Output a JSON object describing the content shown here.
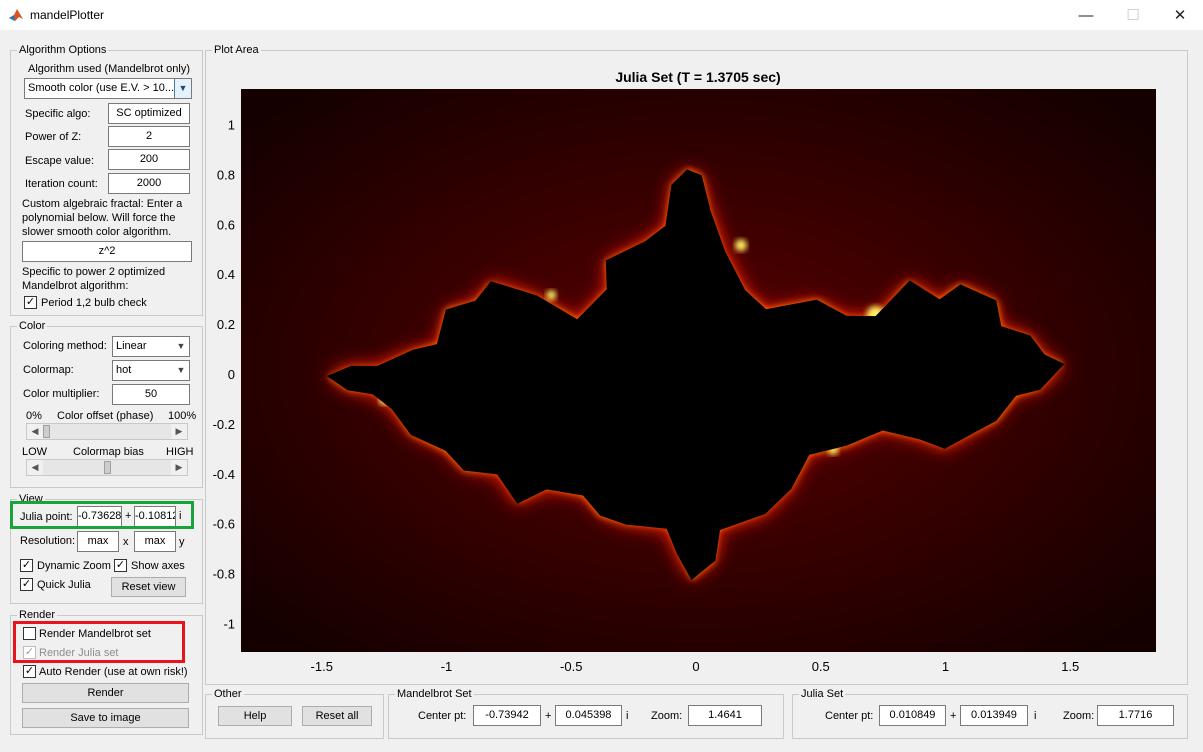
{
  "window": {
    "title": "mandelPlotter",
    "minimize": "—",
    "maximize": "☐",
    "close": "✕"
  },
  "algorithm": {
    "panel_title": "Algorithm Options",
    "algorithm_used_label": "Algorithm used (Mandelbrot only)",
    "algorithm_value": "Smooth color (use E.V. > 10...",
    "specific_algo_label": "Specific algo:",
    "specific_algo_value": "SC optimized",
    "power_label": "Power of Z:",
    "power_value": "2",
    "escape_label": "Escape value:",
    "escape_value": "200",
    "iteration_label": "Iteration count:",
    "iteration_value": "2000",
    "custom_text_1": "Custom algebraic fractal: Enter a",
    "custom_text_2": "polynomial below. Will force the",
    "custom_text_3": "slower smooth color algorithm.",
    "polynomial_value": "z^2",
    "specific_text_1": "Specific to power 2 optimized",
    "specific_text_2": "Mandelbrot algorithm:",
    "period_check_label": "Period 1,2 bulb check",
    "period_checked": true
  },
  "color": {
    "panel_title": "Color",
    "method_label": "Coloring method:",
    "method_value": "Linear",
    "colormap_label": "Colormap:",
    "colormap_value": "hot",
    "multiplier_label": "Color multiplier:",
    "multiplier_value": "50",
    "offset_min": "0%",
    "offset_label": "Color offset (phase)",
    "offset_max": "100%",
    "offset_level": 0.0,
    "bias_min": "LOW",
    "bias_label": "Colormap bias",
    "bias_max": "HIGH",
    "bias_level": 0.5
  },
  "view": {
    "panel_title": "View",
    "julia_point_label": "Julia point:",
    "julia_real": "-0.73628",
    "plus": "+",
    "julia_imag": "-0.10812",
    "imag_unit": "i",
    "resolution_label": "Resolution:",
    "res_x": "max",
    "x_sep": "x",
    "res_y": "max",
    "y_label": "y",
    "dynamic_zoom_label": "Dynamic Zoom",
    "dynamic_zoom_checked": true,
    "show_axes_label": "Show axes",
    "show_axes_checked": true,
    "quick_julia_label": "Quick Julia",
    "quick_julia_checked": true,
    "reset_view_label": "Reset view"
  },
  "render": {
    "panel_title": "Render",
    "mandelbrot_label": "Render Mandelbrot set",
    "mandelbrot_checked": false,
    "julia_label": "Render Julia set",
    "julia_checked": true,
    "auto_render_label": "Auto Render (use at own risk!)",
    "auto_render_checked": true,
    "render_button": "Render",
    "save_button": "Save to image"
  },
  "plot": {
    "panel_title": "Plot Area",
    "title": "Julia Set (T = 1.3705 sec)",
    "x_ticks": [
      "-1.5",
      "-1",
      "-0.5",
      "0",
      "0.5",
      "1",
      "1.5"
    ],
    "y_ticks": [
      "1",
      "0.8",
      "0.6",
      "0.4",
      "0.2",
      "0",
      "-0.2",
      "-0.4",
      "-0.6",
      "-0.8",
      "-1"
    ],
    "colors": {
      "background_dark": "#1a0000",
      "glow": "#ff2000",
      "fill": "#000000",
      "highlight": "#ffee60"
    }
  },
  "other": {
    "panel_title": "Other",
    "help_button": "Help",
    "reset_all_button": "Reset all"
  },
  "mandelbrot_set": {
    "panel_title": "Mandelbrot Set",
    "center_label": "Center pt:",
    "center_real": "-0.73942",
    "plus": "+",
    "center_imag": "0.045398",
    "imag_unit": "i",
    "zoom_label": "Zoom:",
    "zoom_value": "1.4641"
  },
  "julia_set": {
    "panel_title": "Julia Set",
    "center_label": "Center pt:",
    "center_real": "0.010849",
    "plus": "+",
    "center_imag": "0.013949",
    "imag_unit": "i",
    "zoom_label": "Zoom:",
    "zoom_value": "1.7716"
  },
  "annotations": {
    "green": "#1aa33a",
    "red": "#e8141b"
  }
}
